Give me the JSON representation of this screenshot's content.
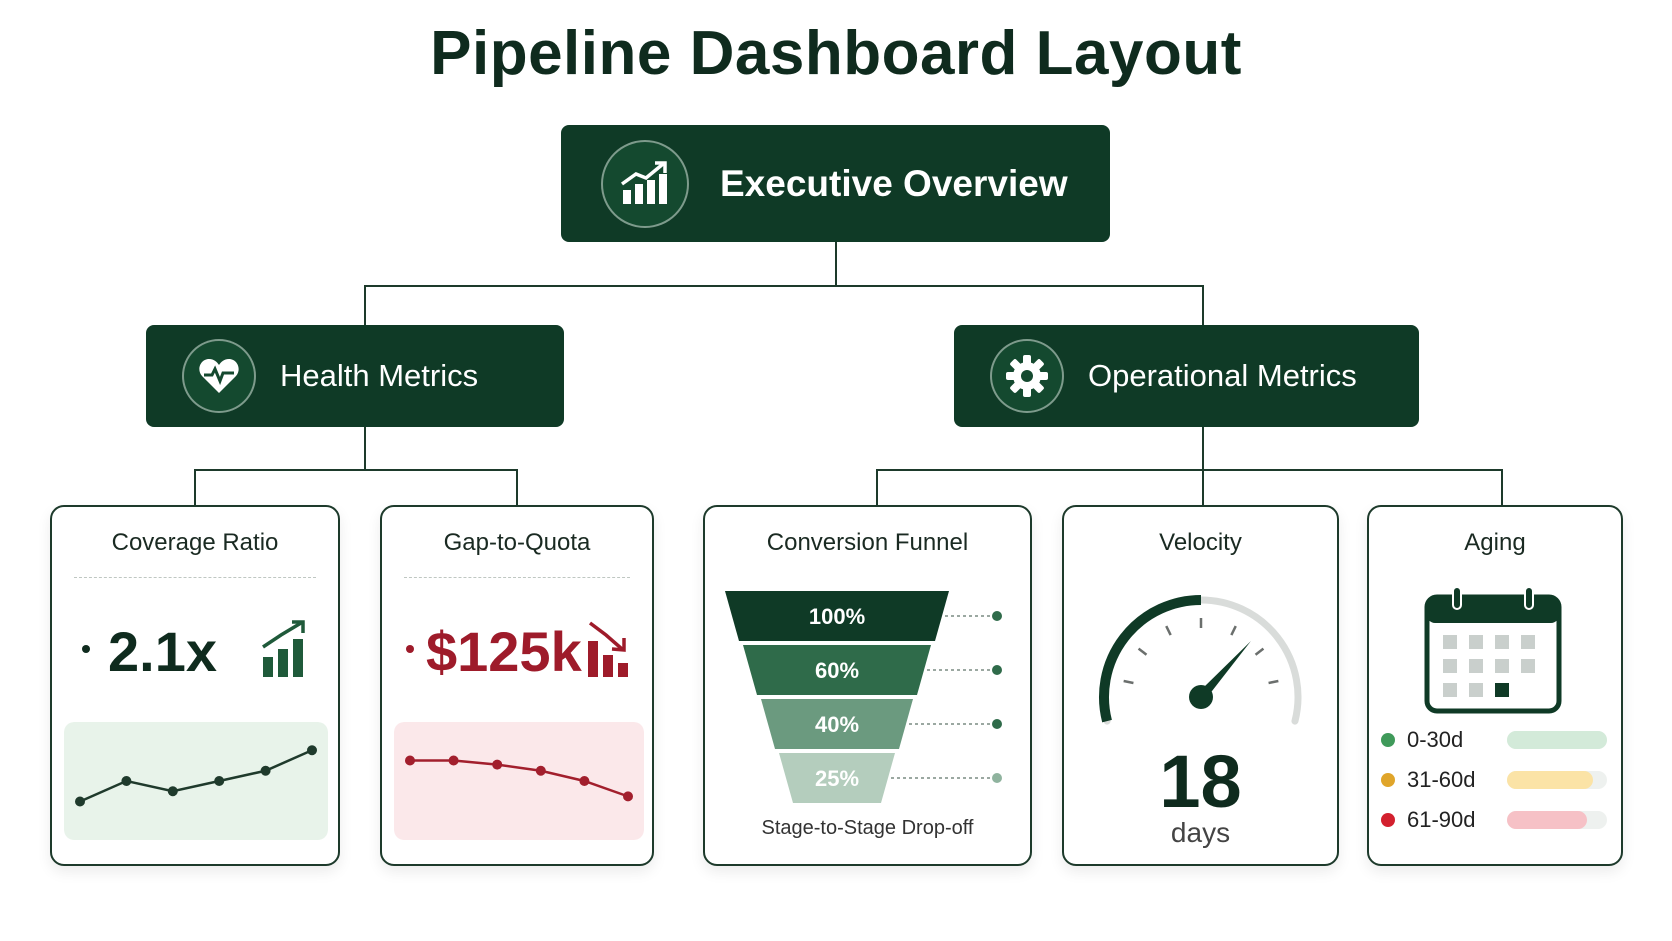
{
  "title": "Pipeline Dashboard Layout",
  "colors": {
    "primary": "#0f3a26",
    "positive": "#1f5a3a",
    "negative": "#9e1b2a",
    "positive_bg": "#e8f3ea",
    "negative_bg": "#fbe8ea"
  },
  "root": {
    "label": "Executive Overview",
    "icon": "growth-chart-icon"
  },
  "branches": [
    {
      "label": "Health Metrics",
      "icon": "heart-pulse-icon"
    },
    {
      "label": "Operational Metrics",
      "icon": "gear-icon"
    }
  ],
  "cards": {
    "coverage": {
      "title": "Coverage Ratio",
      "value": "2.1x",
      "icon": "bars-up-icon",
      "trend": [
        2,
        4,
        3,
        4,
        5,
        7
      ]
    },
    "gap": {
      "title": "Gap-to-Quota",
      "value": "$125k",
      "icon": "bars-down-icon",
      "trend": [
        6,
        6,
        5.6,
        5,
        4,
        2.5
      ]
    },
    "funnel": {
      "title": "Conversion Funnel",
      "stages": [
        "100%",
        "60%",
        "40%",
        "25%"
      ],
      "caption": "Stage-to-Stage Drop-off"
    },
    "velocity": {
      "title": "Velocity",
      "value": "18",
      "unit": "days",
      "gauge_fraction": 0.7
    },
    "aging": {
      "title": "Aging",
      "icon": "calendar-icon",
      "buckets": [
        {
          "label": "0-30d",
          "color": "#3f9a5a",
          "bar_color": "#d3ead9",
          "fill": 1.0
        },
        {
          "label": "31-60d",
          "color": "#e0a52a",
          "bar_color": "#fbe3a6",
          "fill": 0.86
        },
        {
          "label": "61-90d",
          "color": "#d3202e",
          "bar_color": "#f6c1c6",
          "fill": 0.8
        }
      ]
    }
  }
}
